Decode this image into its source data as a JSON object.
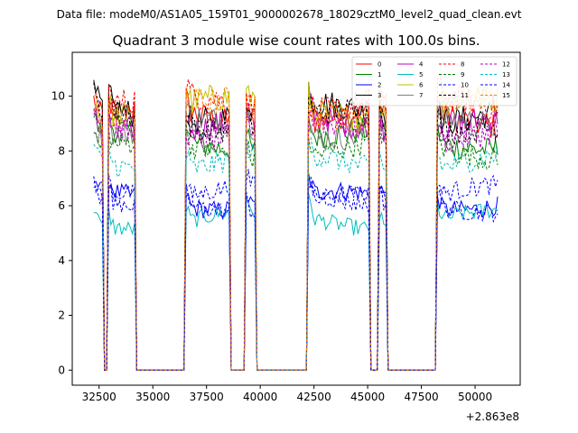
{
  "suptitle": "Data file: modeM0/AS1A05_159T01_9000002678_18029cztM0_level2_quad_clean.evt",
  "chart_data": {
    "type": "line",
    "title": "Quadrant 3 module wise count rates with 100.0s bins.",
    "xlabel": "",
    "ylabel": "",
    "x_offset_label": "+2.863e8",
    "xlim": [
      31250,
      52100
    ],
    "ylim": [
      -0.55,
      11.6
    ],
    "x_ticks": [
      32500,
      35000,
      37500,
      40000,
      42500,
      45000,
      47500,
      50000
    ],
    "x_tick_labels": [
      "32500",
      "35000",
      "37500",
      "40000",
      "42500",
      "45000",
      "47500",
      "50000"
    ],
    "y_ticks": [
      0,
      2,
      4,
      6,
      8,
      10
    ],
    "y_tick_labels": [
      "0",
      "2",
      "4",
      "6",
      "8",
      "10"
    ],
    "grid": false,
    "legend_position": "top-right",
    "legend_columns": 4,
    "gti_segments": [
      [
        32250,
        32700
      ],
      [
        32900,
        34200
      ],
      [
        36500,
        38600
      ],
      [
        39300,
        39800
      ],
      [
        42250,
        45100
      ],
      [
        45500,
        45850
      ],
      [
        48200,
        51050
      ]
    ],
    "series": [
      {
        "name": "0",
        "color": "#ff0000",
        "style": "solid",
        "level": 9.2
      },
      {
        "name": "1",
        "color": "#008000",
        "style": "solid",
        "level": 8.4
      },
      {
        "name": "2",
        "color": "#0000ff",
        "style": "solid",
        "level": 6.2
      },
      {
        "name": "3",
        "color": "#000000",
        "style": "solid",
        "level": 9.4
      },
      {
        "name": "4",
        "color": "#bf00bf",
        "style": "solid",
        "level": 9.0
      },
      {
        "name": "5",
        "color": "#00bfbf",
        "style": "solid",
        "level": 5.5
      },
      {
        "name": "6",
        "color": "#bfbf00",
        "style": "solid",
        "level": 9.6
      },
      {
        "name": "7",
        "color": "#808080",
        "style": "solid",
        "level": 8.8
      },
      {
        "name": "8",
        "color": "#ff0000",
        "style": "dashed",
        "level": 9.7
      },
      {
        "name": "9",
        "color": "#008000",
        "style": "dashed",
        "level": 8.0
      },
      {
        "name": "10",
        "color": "#0000ff",
        "style": "dashed",
        "level": 6.1
      },
      {
        "name": "11",
        "color": "#000000",
        "style": "dashed",
        "level": 9.1
      },
      {
        "name": "12",
        "color": "#bf00bf",
        "style": "dashed",
        "level": 8.7
      },
      {
        "name": "13",
        "color": "#00bfbf",
        "style": "dashed",
        "level": 7.6
      },
      {
        "name": "14",
        "color": "#0000ff",
        "style": "dashed",
        "level": 6.4
      },
      {
        "name": "15",
        "color": "#ff8000",
        "style": "dashed",
        "level": 9.5
      }
    ]
  }
}
